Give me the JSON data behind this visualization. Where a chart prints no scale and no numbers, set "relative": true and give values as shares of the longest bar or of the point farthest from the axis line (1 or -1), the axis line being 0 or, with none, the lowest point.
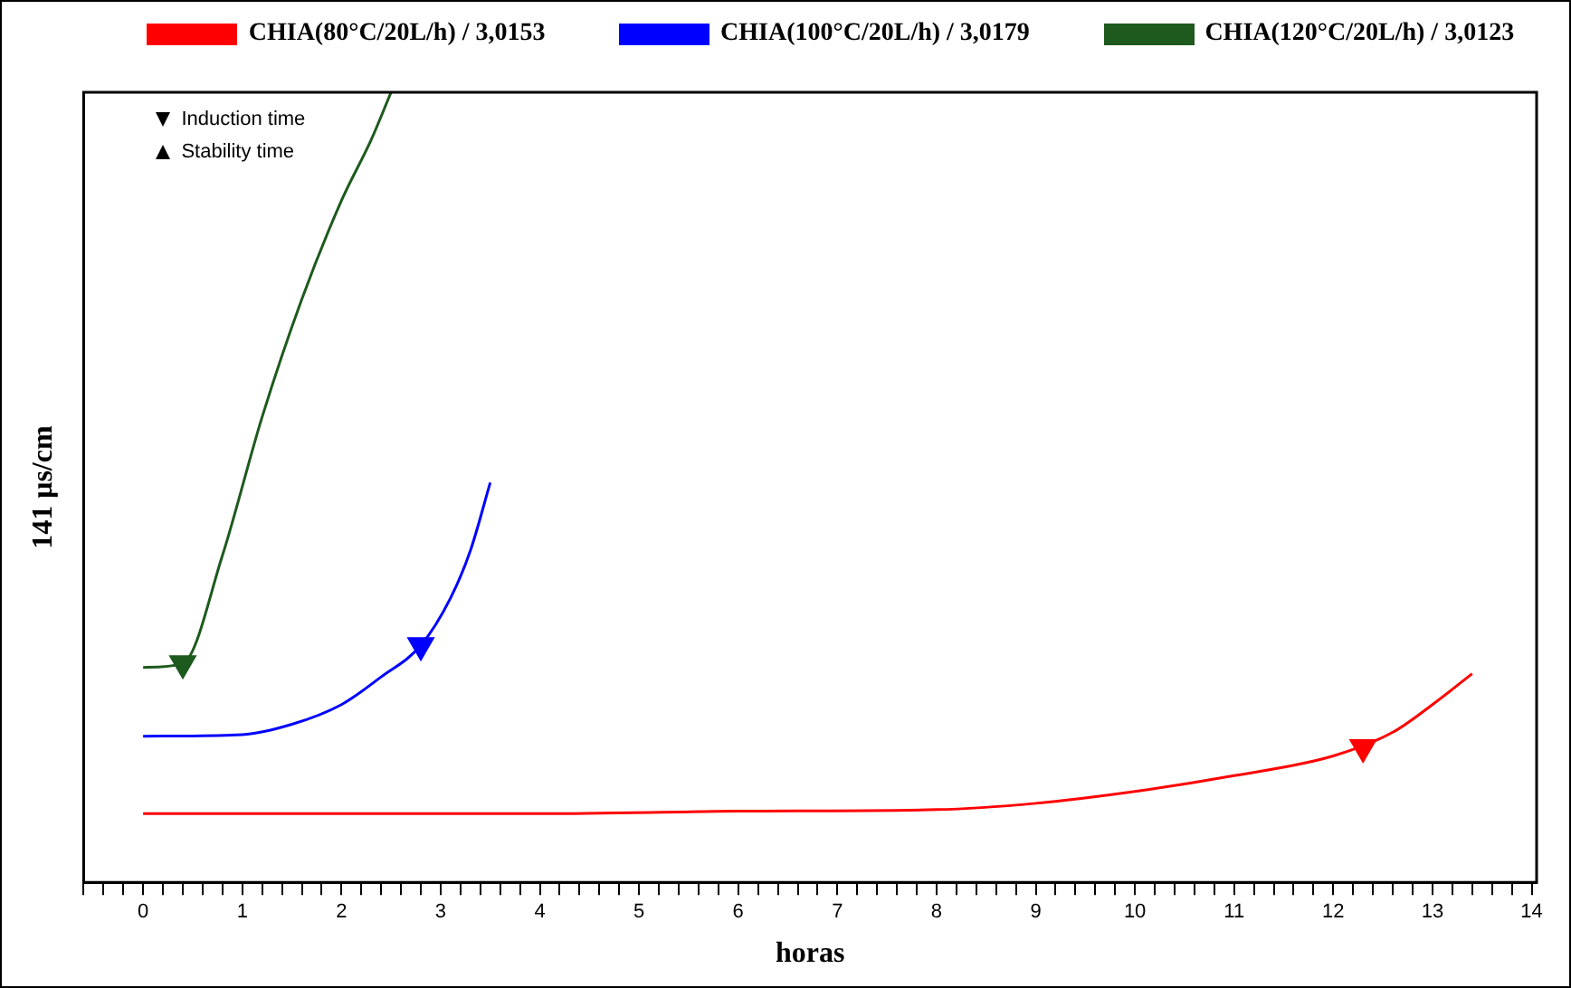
{
  "chart_data": {
    "type": "line",
    "relative": true,
    "xlabel": "horas",
    "ylabel": "141 μs/cm",
    "xlim": [
      -0.6,
      14.05
    ],
    "xticks": [
      0,
      1,
      2,
      3,
      4,
      5,
      6,
      7,
      8,
      9,
      10,
      11,
      12,
      13,
      14,
      {
        "value": -0.6,
        "label": null
      },
      {
        "value": -0.4,
        "label": null
      },
      {
        "value": -0.2,
        "label": null
      },
      {
        "value": 0.2,
        "label": null
      },
      {
        "value": 0.4,
        "label": null
      },
      {
        "value": 0.6,
        "label": null
      },
      {
        "value": 0.8,
        "label": null
      },
      {
        "value": 1.2,
        "label": null
      },
      {
        "value": 1.4,
        "label": null
      },
      {
        "value": 1.6,
        "label": null
      },
      {
        "value": 1.8,
        "label": null
      },
      {
        "value": 2.2,
        "label": null
      },
      {
        "value": 2.4,
        "label": null
      },
      {
        "value": 2.6,
        "label": null
      },
      {
        "value": 2.8,
        "label": null
      },
      {
        "value": 3.2,
        "label": null
      },
      {
        "value": 3.4,
        "label": null
      },
      {
        "value": 3.6,
        "label": null
      },
      {
        "value": 3.8,
        "label": null
      },
      {
        "value": 4.2,
        "label": null
      },
      {
        "value": 4.4,
        "label": null
      },
      {
        "value": 4.6,
        "label": null
      },
      {
        "value": 4.8,
        "label": null
      },
      {
        "value": 5.2,
        "label": null
      },
      {
        "value": 5.4,
        "label": null
      },
      {
        "value": 5.6,
        "label": null
      },
      {
        "value": 5.8,
        "label": null
      },
      {
        "value": 6.2,
        "label": null
      },
      {
        "value": 6.4,
        "label": null
      },
      {
        "value": 6.6,
        "label": null
      },
      {
        "value": 6.8,
        "label": null
      },
      {
        "value": 7.2,
        "label": null
      },
      {
        "value": 7.4,
        "label": null
      },
      {
        "value": 7.6,
        "label": null
      },
      {
        "value": 7.8,
        "label": null
      },
      {
        "value": 8.2,
        "label": null
      },
      {
        "value": 8.4,
        "label": null
      },
      {
        "value": 8.6,
        "label": null
      },
      {
        "value": 8.8,
        "label": null
      },
      {
        "value": 9.2,
        "label": null
      },
      {
        "value": 9.4,
        "label": null
      },
      {
        "value": 9.6,
        "label": null
      },
      {
        "value": 9.8,
        "label": null
      },
      {
        "value": 10.2,
        "label": null
      },
      {
        "value": 10.4,
        "label": null
      },
      {
        "value": 10.6,
        "label": null
      },
      {
        "value": 10.8,
        "label": null
      },
      {
        "value": 11.2,
        "label": null
      },
      {
        "value": 11.4,
        "label": null
      },
      {
        "value": 11.6,
        "label": null
      },
      {
        "value": 11.8,
        "label": null
      },
      {
        "value": 12.2,
        "label": null
      },
      {
        "value": 12.4,
        "label": null
      },
      {
        "value": 12.6,
        "label": null
      },
      {
        "value": 12.8,
        "label": null
      },
      {
        "value": 13.2,
        "label": null
      },
      {
        "value": 13.4,
        "label": null
      },
      {
        "value": 13.6,
        "label": null
      },
      {
        "value": 13.8,
        "label": null
      }
    ],
    "legend": "top",
    "line_style": "solid",
    "annotations": [
      "Induction time",
      "Stability time"
    ],
    "series": [
      {
        "name": "CHIA(80°C/20L/h) / 3,0153",
        "color": "#ff0000",
        "x": [
          0,
          2,
          4,
          6,
          8,
          9,
          10,
          11,
          12,
          12.6,
          13,
          13.4
        ],
        "values": [
          0.087,
          0.087,
          0.087,
          0.09,
          0.092,
          0.1,
          0.115,
          0.135,
          0.16,
          0.19,
          0.225,
          0.264
        ]
      },
      {
        "name": "CHIA(100°C/20L/h) / 3,0179",
        "color": "#0000ff",
        "x": [
          0,
          1,
          1.5,
          2,
          2.4,
          2.8,
          3.1,
          3.3,
          3.5
        ],
        "values": [
          0.185,
          0.187,
          0.2,
          0.225,
          0.26,
          0.3,
          0.36,
          0.42,
          0.506
        ]
      },
      {
        "name": "CHIA(120°C/20L/h) / 3,0123",
        "color": "#1e5a1e",
        "x": [
          0,
          0.4,
          0.8,
          1.2,
          1.6,
          2.0,
          2.3,
          2.5
        ],
        "values": [
          0.272,
          0.277,
          0.414,
          0.589,
          0.738,
          0.863,
          0.94,
          1
        ]
      },
      {
        "type": "scatter",
        "marker": "triangle",
        "colors": [
          "#1e5a1e",
          "#0000ff",
          "#ff0000"
        ],
        "x": [
          0.4,
          2.8,
          12.3
        ],
        "values": [
          0.277,
          0.3,
          0.171
        ]
      }
    ]
  }
}
